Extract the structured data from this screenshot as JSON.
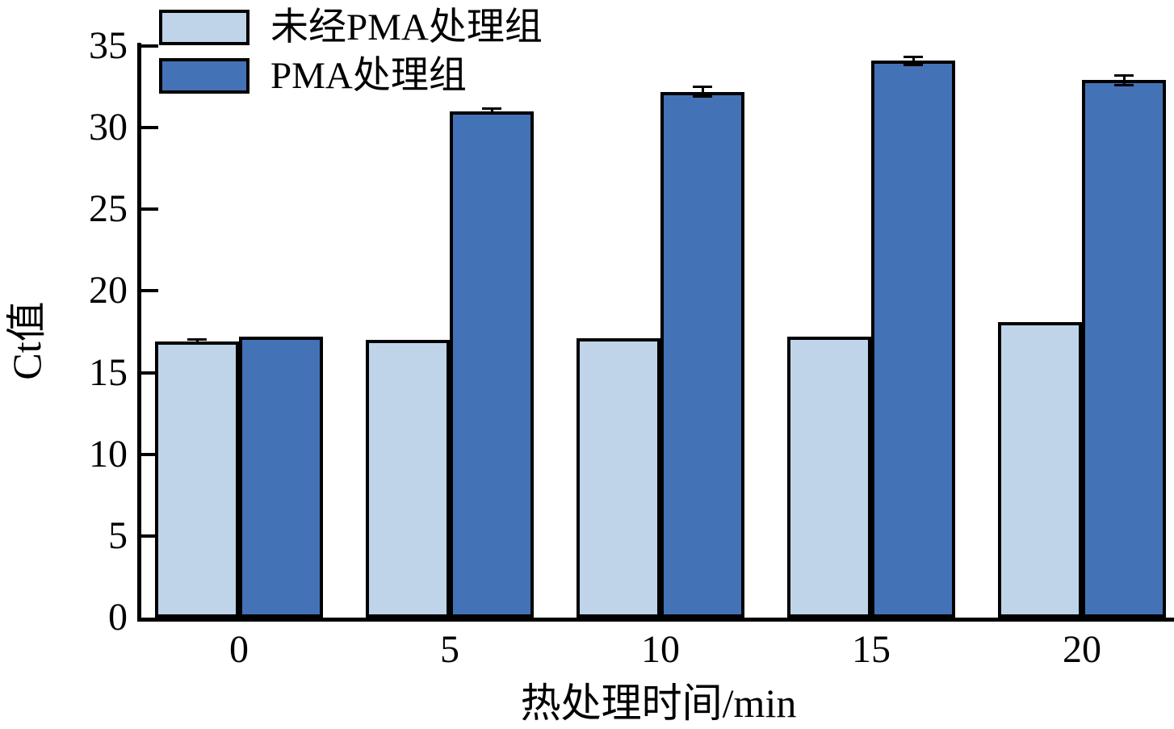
{
  "figure": {
    "ylabel": "Ct值",
    "xlabel": "热处理时间/min"
  },
  "chart_data": {
    "type": "bar",
    "title": "",
    "xlabel": "热处理时间/min",
    "ylabel": "Ct值",
    "categories": [
      "0",
      "5",
      "10",
      "15",
      "20"
    ],
    "series": [
      {
        "name": "未经PMA处理组",
        "color": "#BFD4E9",
        "values": [
          16.9,
          17.0,
          17.1,
          17.2,
          18.1
        ],
        "errors": [
          0.12,
          0,
          0,
          0,
          0
        ]
      },
      {
        "name": "PMA处理组",
        "color": "#4472B6",
        "values": [
          17.2,
          31.0,
          32.2,
          34.1,
          32.9
        ],
        "errors": [
          0,
          0.15,
          0.3,
          0.25,
          0.3
        ]
      }
    ],
    "ylim": [
      0,
      35
    ],
    "yticks": [
      0,
      5,
      10,
      15,
      20,
      25,
      30,
      35
    ],
    "bar_edge_color": "#000000",
    "error_bar_color": "#000000",
    "legend_position": "upper-left",
    "grid": false
  }
}
